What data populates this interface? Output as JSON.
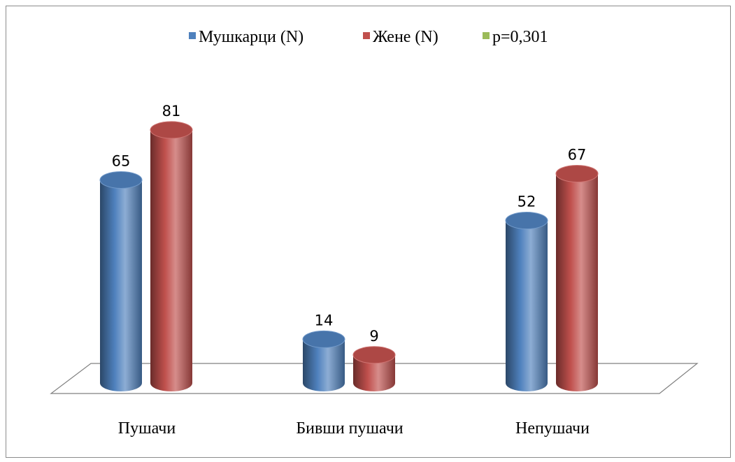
{
  "chart_data": {
    "type": "bar3d",
    "categories": [
      "Пушачи",
      "Бивши пушачи",
      "Непушачи"
    ],
    "series": [
      {
        "name": "Мушкарци (N)",
        "color": "#4f81bd",
        "values": [
          65,
          14,
          52
        ]
      },
      {
        "name": "Жене (N)",
        "color": "#c0504d",
        "values": [
          81,
          9,
          67
        ]
      },
      {
        "name": "p=0,301",
        "color": "#9bbb59",
        "values": [
          null,
          null,
          null
        ]
      }
    ]
  }
}
